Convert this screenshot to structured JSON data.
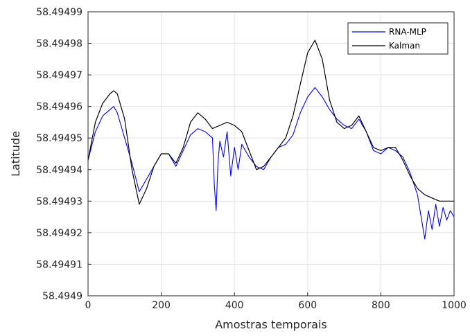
{
  "chart_data": {
    "type": "line",
    "title": "",
    "xlabel": "Amostras temporais",
    "ylabel": "Latitude",
    "xlim": [
      0,
      1000
    ],
    "ylim": [
      58.4949,
      58.49499
    ],
    "grid": true,
    "legend_position": "top-right",
    "x_ticks": [
      0,
      200,
      400,
      600,
      800,
      1000
    ],
    "x_tick_labels": [
      "0",
      "200",
      "400",
      "600",
      "800",
      "1000"
    ],
    "y_ticks": [
      58.4949,
      58.49491,
      58.49492,
      58.49493,
      58.49494,
      58.49495,
      58.49496,
      58.49497,
      58.49498,
      58.49499
    ],
    "y_tick_labels": [
      "58.4949",
      "58.49491",
      "58.49492",
      "58.49493",
      "58.49494",
      "58.49495",
      "58.49496",
      "58.49497",
      "58.49498",
      "58.49499"
    ],
    "series": [
      {
        "name": "RNA-MLP",
        "color": "#0000ff",
        "x": [
          0,
          20,
          40,
          60,
          70,
          80,
          100,
          120,
          140,
          160,
          180,
          200,
          220,
          240,
          260,
          280,
          300,
          320,
          340,
          345,
          350,
          355,
          360,
          370,
          380,
          390,
          400,
          410,
          420,
          440,
          460,
          480,
          500,
          520,
          540,
          560,
          580,
          600,
          620,
          640,
          660,
          680,
          700,
          720,
          740,
          760,
          780,
          800,
          820,
          840,
          860,
          880,
          900,
          910,
          920,
          930,
          940,
          950,
          960,
          970,
          980,
          990,
          1000
        ],
        "y": [
          58.494943,
          58.494952,
          58.494957,
          58.494959,
          58.49496,
          58.494958,
          58.49495,
          58.494942,
          58.494933,
          58.494937,
          58.494941,
          58.494945,
          58.494945,
          58.494941,
          58.494946,
          58.494951,
          58.494953,
          58.494952,
          58.49495,
          58.494935,
          58.494927,
          58.494942,
          58.494949,
          58.494944,
          58.494952,
          58.494938,
          58.494947,
          58.49494,
          58.494948,
          58.494944,
          58.494941,
          58.49494,
          58.494944,
          58.494947,
          58.494948,
          58.494951,
          58.494958,
          58.494963,
          58.494966,
          58.494963,
          58.494959,
          58.494956,
          58.494954,
          58.494953,
          58.494956,
          58.494952,
          58.494946,
          58.494945,
          58.494947,
          58.494946,
          58.494944,
          58.494939,
          58.494932,
          58.494925,
          58.494918,
          58.494927,
          58.494921,
          58.494929,
          58.494922,
          58.494928,
          58.494924,
          58.494927,
          58.494925
        ]
      },
      {
        "name": "Kalman",
        "color": "#000000",
        "x": [
          0,
          20,
          40,
          60,
          70,
          80,
          100,
          120,
          140,
          160,
          180,
          200,
          220,
          240,
          260,
          280,
          300,
          320,
          340,
          360,
          380,
          400,
          420,
          440,
          460,
          480,
          500,
          520,
          540,
          560,
          580,
          600,
          620,
          640,
          660,
          680,
          700,
          720,
          740,
          760,
          780,
          800,
          820,
          840,
          860,
          880,
          900,
          920,
          940,
          960,
          980,
          1000
        ],
        "y": [
          58.494943,
          58.494955,
          58.494961,
          58.494964,
          58.494965,
          58.494964,
          58.494956,
          58.49494,
          58.494929,
          58.494934,
          58.494941,
          58.494945,
          58.494945,
          58.494942,
          58.494947,
          58.494955,
          58.494958,
          58.494956,
          58.494953,
          58.494954,
          58.494955,
          58.494954,
          58.494952,
          58.494946,
          58.49494,
          58.494941,
          58.494944,
          58.494947,
          58.49495,
          58.494957,
          58.494967,
          58.494977,
          58.494981,
          58.494975,
          58.494962,
          58.494955,
          58.494953,
          58.494954,
          58.494957,
          58.494952,
          58.494947,
          58.494946,
          58.494947,
          58.494947,
          58.494943,
          58.494938,
          58.494934,
          58.494932,
          58.494931,
          58.49493,
          58.49493,
          58.49493
        ]
      }
    ]
  }
}
